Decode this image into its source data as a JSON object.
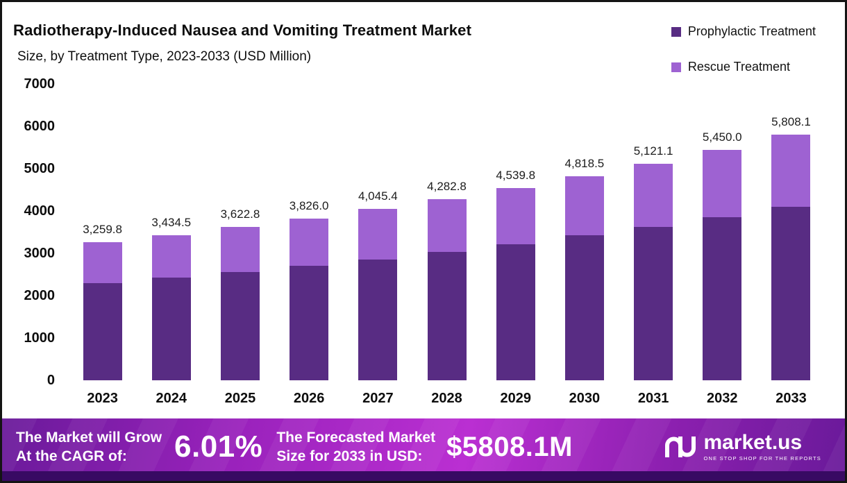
{
  "header": {
    "title": "Radiotherapy-Induced Nausea and Vomiting Treatment Market",
    "subtitle": "Size, by Treatment Type, 2023-2033 (USD Million)"
  },
  "legend": [
    {
      "label": "Prophylactic Treatment",
      "color": "#582c83"
    },
    {
      "label": "Rescue Treatment",
      "color": "#9e62d2"
    }
  ],
  "chart_data": {
    "type": "bar",
    "stacked": true,
    "title": "Radiotherapy-Induced Nausea and Vomiting Treatment Market Size, by Treatment Type, 2023-2033 (USD Million)",
    "categories": [
      "2023",
      "2024",
      "2025",
      "2026",
      "2027",
      "2028",
      "2029",
      "2030",
      "2031",
      "2032",
      "2033"
    ],
    "series": [
      {
        "name": "Prophylactic Treatment",
        "color": "#582c83",
        "values": [
          2300,
          2420,
          2555,
          2700,
          2860,
          3030,
          3215,
          3420,
          3630,
          3860,
          4105
        ]
      },
      {
        "name": "Rescue Treatment",
        "color": "#9e62d2",
        "values": [
          959.8,
          1014.5,
          1067.8,
          1126.0,
          1185.4,
          1252.8,
          1324.8,
          1398.5,
          1491.1,
          1590.0,
          1703.1
        ]
      }
    ],
    "totals": [
      3259.8,
      3434.5,
      3622.8,
      3826.0,
      4045.4,
      4282.8,
      4539.8,
      4818.5,
      5121.1,
      5450.0,
      5808.1
    ],
    "total_labels": [
      "3,259.8",
      "3,434.5",
      "3,622.8",
      "3,826.0",
      "4,045.4",
      "4,282.8",
      "4,539.8",
      "4,818.5",
      "5,121.1",
      "5,450.0",
      "5,808.1"
    ],
    "ylim": [
      0,
      7000
    ],
    "yticks": [
      0,
      1000,
      2000,
      3000,
      4000,
      5000,
      6000,
      7000
    ],
    "grid": false,
    "legend_position": "top-right"
  },
  "footer": {
    "cagr_line1": "The Market will Grow",
    "cagr_line2": "At the CAGR of:",
    "cagr_value": "6.01%",
    "forecast_line1": "The Forecasted Market",
    "forecast_line2": "Size for 2033 in USD:",
    "forecast_value": "$5808.1M",
    "brand_name": "market.us",
    "brand_tagline": "ONE STOP SHOP FOR THE REPORTS"
  },
  "colors": {
    "prophylactic": "#582c83",
    "rescue": "#9e62d2",
    "banner_gradient_dark": "#6a1a9a",
    "banner_gradient_bright": "#ba2fd2",
    "bottom_strip": "#380a63",
    "text": "#0d0d0d"
  }
}
